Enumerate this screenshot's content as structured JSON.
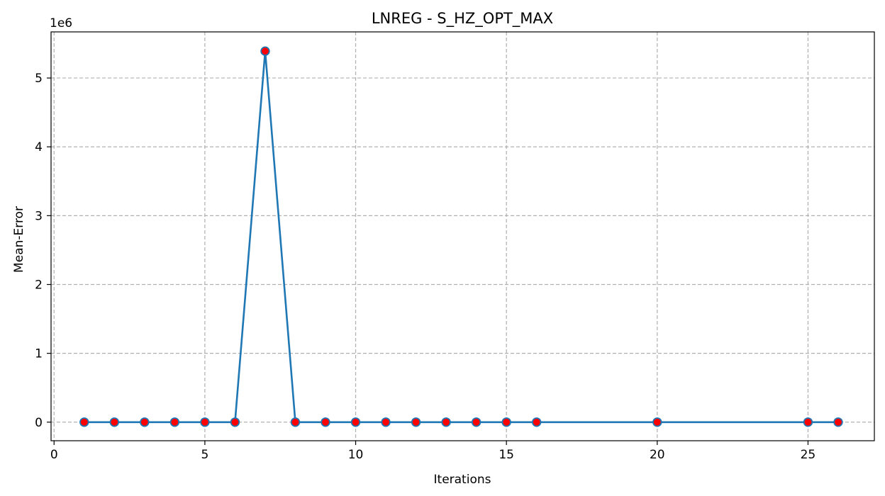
{
  "chart_data": {
    "type": "line",
    "title": "LNREG - S_HZ_OPT_MAX",
    "xlabel": "Iterations",
    "ylabel": "Mean-Error",
    "y_offset_label": "1e6",
    "xlim": [
      -0.1,
      27.2
    ],
    "ylim": [
      -0.27,
      5.67
    ],
    "x_ticks": [
      0,
      5,
      10,
      15,
      20,
      25
    ],
    "y_ticks": [
      0,
      1,
      2,
      3,
      4,
      5
    ],
    "grid": true,
    "series": [
      {
        "x": [
          1,
          2,
          3,
          4,
          5,
          6,
          7,
          8,
          9,
          10,
          11,
          12,
          13,
          14,
          15,
          16,
          20,
          25,
          26
        ],
        "y": [
          0,
          0,
          0,
          0,
          0,
          0,
          5.39,
          0,
          0,
          0,
          0,
          0,
          0,
          0,
          0,
          0,
          0,
          0,
          0
        ],
        "line_color": "#1f77b4",
        "marker_face": "#ff0000",
        "marker_edge": "#1f77b4"
      }
    ]
  }
}
